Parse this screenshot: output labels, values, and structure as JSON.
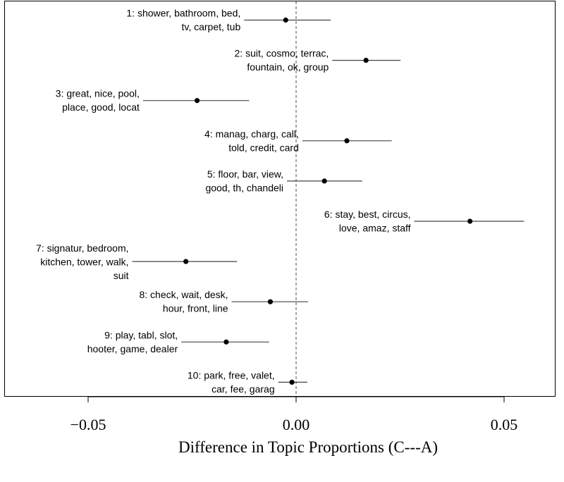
{
  "chart_data": {
    "type": "scatter",
    "subtype": "point-estimate-with-confidence-interval",
    "xlabel": "Difference in Topic Proportions (C---A)",
    "ylabel": "",
    "xlim": [
      -0.07,
      0.0622
    ],
    "xticks": [
      -0.05,
      0.0,
      0.05
    ],
    "xtick_labels": [
      "−0.05",
      "0.00",
      "0.05"
    ],
    "reference_line": 0.0,
    "grid": false,
    "legend": "none",
    "topics": [
      {
        "label_lines": [
          "1: shower, bathroom, bed,",
          "tv, carpet, tub"
        ],
        "estimate": -0.0025,
        "ci": [
          -0.0125,
          0.0083
        ]
      },
      {
        "label_lines": [
          "2: suit, cosmo, terrac,",
          "fountain, ok, group"
        ],
        "estimate": 0.0168,
        "ci": [
          0.0087,
          0.0251
        ]
      },
      {
        "label_lines": [
          "3: great, nice, pool,",
          "place, good, locat"
        ],
        "estimate": -0.0238,
        "ci": [
          -0.0368,
          -0.0113
        ]
      },
      {
        "label_lines": [
          "4: manag, charg, call,",
          "told, credit, card"
        ],
        "estimate": 0.0122,
        "ci": [
          0.0015,
          0.023
        ]
      },
      {
        "label_lines": [
          "5: floor, bar, view,",
          "good, th, chandeli"
        ],
        "estimate": 0.0068,
        "ci": [
          -0.0022,
          0.0159
        ]
      },
      {
        "label_lines": [
          "6: stay, best, circus,",
          "love, amaz, staff"
        ],
        "estimate": 0.0418,
        "ci": [
          0.0284,
          0.0548
        ]
      },
      {
        "label_lines": [
          "7: signatur, bedroom,",
          "kitchen, tower, walk,",
          "suit"
        ],
        "estimate": -0.0265,
        "ci": [
          -0.0394,
          -0.0142
        ]
      },
      {
        "label_lines": [
          "8: check, wait, desk,",
          "hour, front, line"
        ],
        "estimate": -0.0062,
        "ci": [
          -0.0155,
          0.0029
        ]
      },
      {
        "label_lines": [
          "9: play, tabl, slot,",
          "hooter, game, dealer"
        ],
        "estimate": -0.0168,
        "ci": [
          -0.0276,
          -0.0065
        ]
      },
      {
        "label_lines": [
          "10: park, free, valet,",
          "car, fee, garag"
        ],
        "estimate": -0.001,
        "ci": [
          -0.0043,
          0.0027
        ]
      }
    ]
  }
}
